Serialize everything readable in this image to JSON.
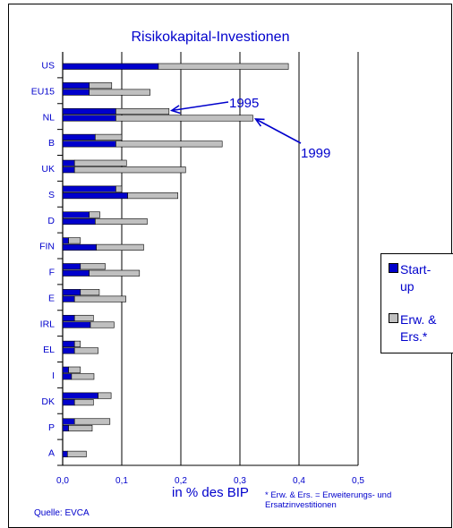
{
  "chart_data": {
    "type": "bar",
    "orientation": "horizontal",
    "stacked": true,
    "title": "Risikokapital-Investionen",
    "xlabel": "in % des BIP",
    "ylabel": "",
    "xlim": [
      0,
      0.5
    ],
    "xticks": [
      "0,0",
      "0,1",
      "0,2",
      "0,3",
      "0,4",
      "0,5"
    ],
    "grid": "vertical",
    "legend_position": "right",
    "categories": [
      "US",
      "EU15",
      "NL",
      "B",
      "UK",
      "S",
      "D",
      "FIN",
      "F",
      "E",
      "IRL",
      "EL",
      "I",
      "DK",
      "P",
      "A"
    ],
    "series": [
      {
        "name": "Start-up",
        "color": "#0000cc",
        "values_1995": [
          0.0,
          0.045,
          0.09,
          0.055,
          0.02,
          0.09,
          0.045,
          0.01,
          0.03,
          0.03,
          0.02,
          0.02,
          0.01,
          0.06,
          0.02,
          0.0
        ],
        "values_1999": [
          0.162,
          0.045,
          0.09,
          0.09,
          0.02,
          0.11,
          0.055,
          0.057,
          0.045,
          0.02,
          0.047,
          0.02,
          0.015,
          0.02,
          0.01,
          0.008
        ]
      },
      {
        "name": "Erw. & Ers.*",
        "color": "#c0c0c0",
        "values_1995": [
          0.0,
          0.038,
          0.09,
          0.045,
          0.088,
          0.01,
          0.018,
          0.02,
          0.042,
          0.032,
          0.032,
          0.01,
          0.02,
          0.022,
          0.06,
          0.0
        ],
        "values_1999": [
          0.22,
          0.103,
          0.232,
          0.18,
          0.188,
          0.085,
          0.088,
          0.08,
          0.085,
          0.087,
          0.04,
          0.04,
          0.038,
          0.032,
          0.04,
          0.032
        ]
      }
    ],
    "annotations": [
      "1995",
      "1999"
    ]
  },
  "footnote": "* Erw. & Ers. = Erweiterungs- und Ersatzinvestitionen",
  "source": "Quelle: EVCA",
  "legend": {
    "startup_lines": [
      "Start-",
      "up"
    ],
    "erw_lines": [
      "Erw. &",
      "Ers.*"
    ]
  }
}
